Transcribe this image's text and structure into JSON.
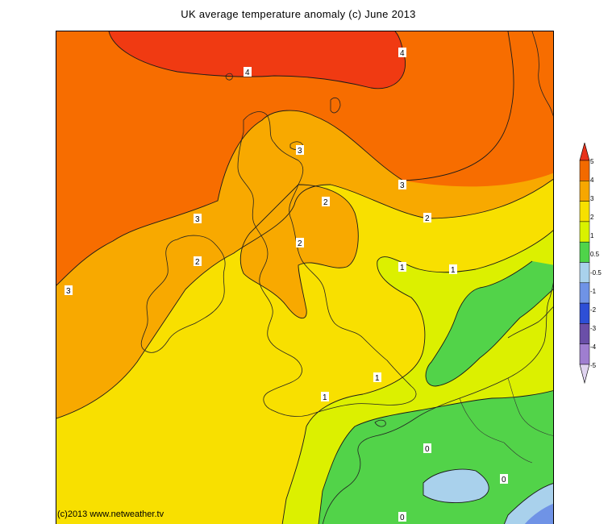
{
  "title": "UK average temperature anomaly (c) June 2013",
  "copyright": "(c)2013 www.netweather.tv",
  "contour_labels": [
    "4",
    "4",
    "3",
    "3",
    "3",
    "3",
    "2",
    "2",
    "2",
    "2",
    "1",
    "1",
    "1",
    "1",
    "0",
    "0",
    "0"
  ],
  "colorbar": {
    "labels": [
      "5",
      "4",
      "3",
      "2",
      "1",
      "0.5",
      "-0.5",
      "-1",
      "-2",
      "-3",
      "-4",
      "-5"
    ],
    "colors": [
      "#e8321c",
      "#f26a00",
      "#f7a700",
      "#f7e000",
      "#d9f200",
      "#4fd44a",
      "#a9d2ec",
      "#6f93e6",
      "#2d4fd6",
      "#6a4fa8",
      "#9f7ed0",
      "#e0d4f0"
    ]
  },
  "fill_colors": {
    "plus4": "#f03a12",
    "plus3": "#f76d00",
    "plus2": "#f8a900",
    "plus1": "#f8e000",
    "plus05": "#dcf000",
    "zero": "#52d349",
    "minus05": "#a9d1ec",
    "minus1": "#6f93e6"
  }
}
